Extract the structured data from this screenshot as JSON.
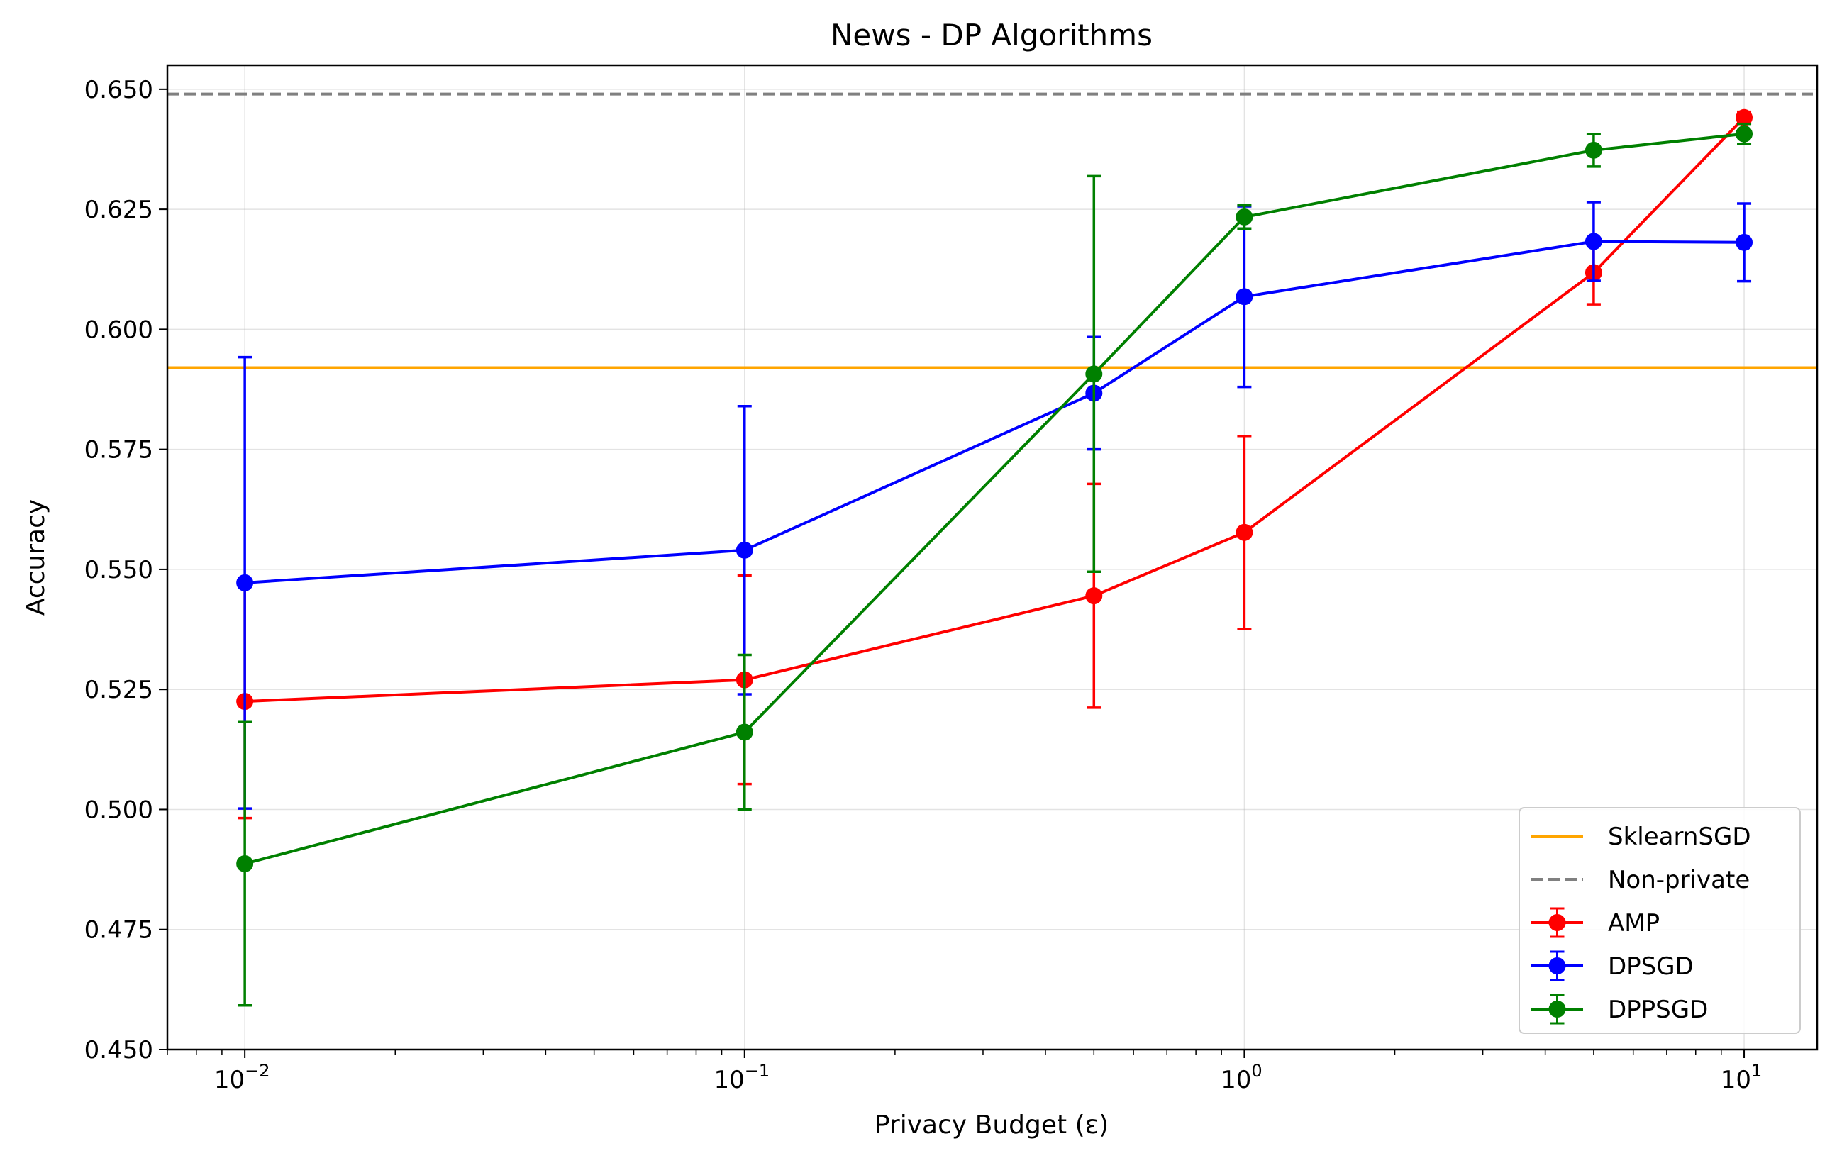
{
  "chart_data": {
    "type": "line",
    "title": "News - DP Algorithms",
    "xlabel": "Privacy Budget (ε)",
    "ylabel": "Accuracy",
    "xscale": "log",
    "xlim": [
      0.007,
      14
    ],
    "ylim": [
      0.45,
      0.655
    ],
    "x_ticks": [
      {
        "value": 0.01,
        "base": "10",
        "exp": "−2"
      },
      {
        "value": 0.1,
        "base": "10",
        "exp": "−1"
      },
      {
        "value": 1,
        "base": "10",
        "exp": "0"
      },
      {
        "value": 10,
        "base": "10",
        "exp": "1"
      }
    ],
    "y_ticks": [
      {
        "value": 0.45,
        "label": "0.450"
      },
      {
        "value": 0.475,
        "label": "0.475"
      },
      {
        "value": 0.5,
        "label": "0.500"
      },
      {
        "value": 0.525,
        "label": "0.525"
      },
      {
        "value": 0.55,
        "label": "0.550"
      },
      {
        "value": 0.575,
        "label": "0.575"
      },
      {
        "value": 0.6,
        "label": "0.600"
      },
      {
        "value": 0.625,
        "label": "0.625"
      },
      {
        "value": 0.65,
        "label": "0.650"
      }
    ],
    "grid": true,
    "legend_position": "lower right",
    "reference_lines": [
      {
        "name": "SklearnSGD",
        "y": 0.592,
        "color": "#FFA500",
        "style": "solid"
      },
      {
        "name": "Non-private",
        "y": 0.649,
        "color": "#808080",
        "style": "dashed"
      }
    ],
    "x": [
      0.01,
      0.1,
      0.5,
      1,
      5,
      10
    ],
    "series": [
      {
        "name": "AMP",
        "color": "#FF0000",
        "values": [
          0.5225,
          0.527,
          0.5445,
          0.5577,
          0.6118,
          0.6441
        ],
        "errors": [
          0.0243,
          0.0217,
          0.0233,
          0.0201,
          0.0066,
          0.0012
        ]
      },
      {
        "name": "DPSGD",
        "color": "#0000FF",
        "values": [
          0.5472,
          0.554,
          0.5867,
          0.6068,
          0.6183,
          0.6181
        ],
        "errors": [
          0.047,
          0.03,
          0.0117,
          0.0188,
          0.0082,
          0.0081
        ]
      },
      {
        "name": "DPPSGD",
        "color": "#008000",
        "values": [
          0.4887,
          0.5161,
          0.5907,
          0.6234,
          0.6373,
          0.6407
        ],
        "errors": [
          0.0295,
          0.0161,
          0.0412,
          0.0024,
          0.0034,
          0.0021
        ]
      }
    ]
  }
}
